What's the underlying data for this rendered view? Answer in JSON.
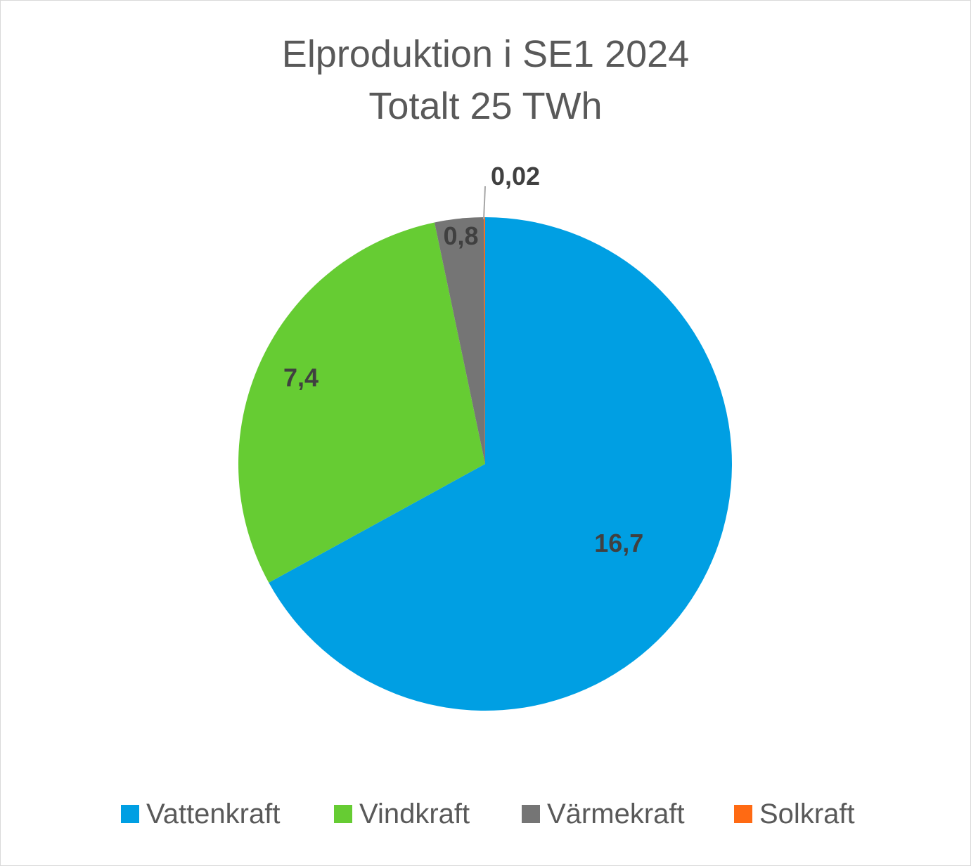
{
  "chart_data": {
    "type": "pie",
    "title": "Elproduktion i SE1 2024",
    "subtitle": "Totalt 25 TWh",
    "categories": [
      "Vattenkraft",
      "Vindkraft",
      "Värmekraft",
      "Solkraft"
    ],
    "values": [
      16.7,
      7.4,
      0.8,
      0.02
    ],
    "data_labels": [
      "16,7",
      "7,4",
      "0,8",
      "0,02"
    ],
    "colors": [
      "#009FE3",
      "#66CC33",
      "#757575",
      "#FF6A13"
    ],
    "legend_position": "bottom",
    "start_angle": "top, clockwise"
  }
}
